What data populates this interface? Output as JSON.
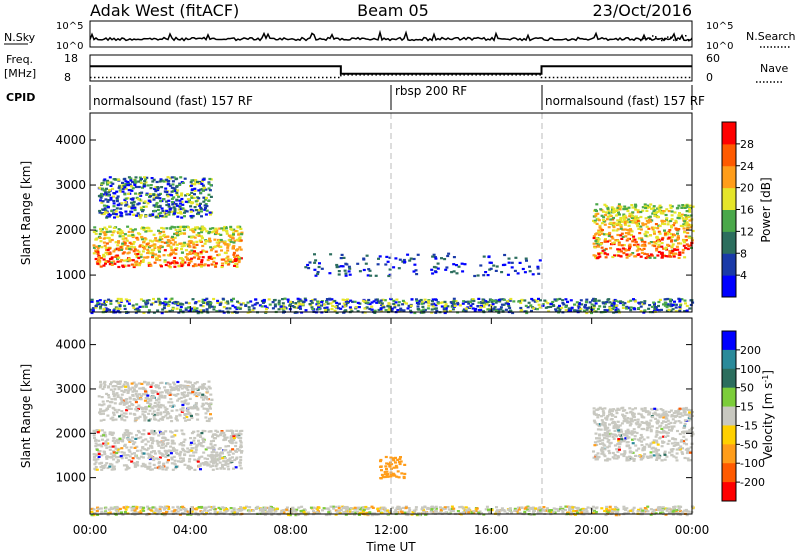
{
  "header": {
    "station": "Adak West (fitACF)",
    "beam": "Beam 05",
    "date": "23/Oct/2016"
  },
  "chart_data": [
    {
      "type": "line",
      "panel": "noise",
      "left_label": "N.Sky",
      "right_label": "N.Search",
      "left_ticks": [
        "10^5",
        "10^0"
      ],
      "right_ticks": [
        "10^5",
        "10^0"
      ],
      "note": "noise sky (solid) and noise search (dotted), log scale"
    },
    {
      "type": "line",
      "panel": "frequency",
      "left_label": "Freq. [MHz]",
      "right_label": "Nave",
      "left_ticks": [
        18,
        8
      ],
      "right_ticks": [
        60,
        0
      ],
      "freq_series": {
        "x": [
          0,
          10,
          10,
          18,
          18,
          24
        ],
        "y": [
          13.7,
          13.7,
          10.8,
          10.8,
          13.7,
          13.7
        ]
      },
      "nave_series": {
        "x": [
          0,
          10,
          10,
          18,
          18,
          24
        ],
        "y": [
          8,
          8,
          14,
          14,
          8,
          8
        ]
      }
    },
    {
      "type": "table",
      "panel": "cpid",
      "label": "CPID",
      "segments": [
        {
          "start": 0,
          "end": 12,
          "name": "normalsound (fast) 157 RF"
        },
        {
          "start": 12,
          "end": 18,
          "name": "rbsp 200 RF"
        },
        {
          "start": 18,
          "end": 24,
          "name": "normalsound (fast) 157 RF"
        }
      ]
    },
    {
      "type": "heatmap",
      "panel": "power",
      "ylabel": "Slant Range [km]",
      "y_ticks": [
        1000,
        2000,
        3000,
        4000
      ],
      "ylim": [
        180,
        4600
      ],
      "colorbar_label": "Power [dB]",
      "colorbar_ticks": [
        4,
        8,
        12,
        16,
        20,
        24,
        28
      ],
      "colorbar_range": [
        0,
        32
      ],
      "colors": [
        "#0000ff",
        "#1a3aa8",
        "#2c6e5e",
        "#4aa84a",
        "#e5e52a",
        "#ff9d1a",
        "#ff5a00",
        "#ff0000"
      ],
      "regions": [
        {
          "x": [
            0.1,
            6.0
          ],
          "y": [
            1200,
            2100
          ],
          "level": "high"
        },
        {
          "x": [
            0.3,
            4.8
          ],
          "y": [
            2300,
            3200
          ],
          "level": "mixed"
        },
        {
          "x": [
            20.0,
            24.0
          ],
          "y": [
            1400,
            2600
          ],
          "level": "high"
        },
        {
          "x": [
            8.5,
            18.0
          ],
          "y": [
            1000,
            1500
          ],
          "level": "low"
        },
        {
          "x": [
            0.0,
            24.0
          ],
          "y": [
            180,
            500
          ],
          "level": "mixed"
        }
      ]
    },
    {
      "type": "heatmap",
      "panel": "velocity",
      "ylabel": "Slant Range [km]",
      "y_ticks": [
        1000,
        2000,
        3000,
        4000
      ],
      "ylim": [
        180,
        4600
      ],
      "colorbar_label": "Velocity [m s^-1]",
      "colorbar_ticks": [
        "200",
        "100",
        "50",
        "15",
        "-15",
        "-50",
        "-100",
        "-200"
      ],
      "colors": [
        "#0000ff",
        "#2a8a9a",
        "#2c6e5e",
        "#7ccd3a",
        "#c8c8c0",
        "#ffd000",
        "#ff9d1a",
        "#ff5a00",
        "#ff0000"
      ],
      "regions": [
        {
          "x": [
            0.1,
            6.0
          ],
          "y": [
            1200,
            2100
          ],
          "level": "grey"
        },
        {
          "x": [
            0.3,
            4.8
          ],
          "y": [
            2300,
            3200
          ],
          "level": "grey"
        },
        {
          "x": [
            20.0,
            24.0
          ],
          "y": [
            1400,
            2600
          ],
          "level": "grey"
        },
        {
          "x": [
            11.5,
            12.5
          ],
          "y": [
            1000,
            1500
          ],
          "level": "orange"
        },
        {
          "x": [
            0.0,
            24.0
          ],
          "y": [
            180,
            500
          ],
          "level": "ground"
        }
      ]
    }
  ],
  "x_axis": {
    "label": "Time UT",
    "ticks": [
      "00:00",
      "04:00",
      "08:00",
      "12:00",
      "16:00",
      "20:00",
      "00:00"
    ],
    "tick_hours": [
      0,
      4,
      8,
      12,
      16,
      20,
      24
    ]
  },
  "superscript": "-1"
}
